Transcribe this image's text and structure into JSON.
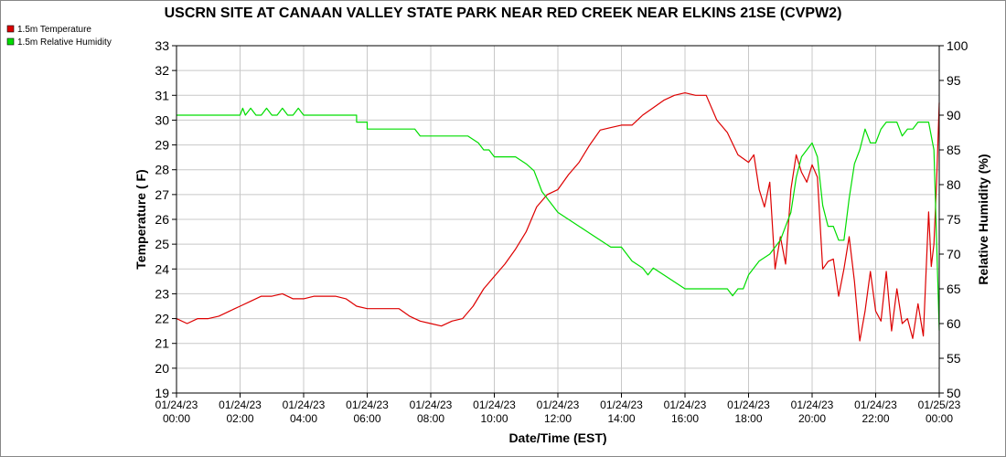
{
  "chart_data": {
    "type": "line",
    "title": "USCRN SITE AT CANAAN VALLEY STATE PARK NEAR RED CREEK NEAR ELKINS 21SE (CVPW2)",
    "xlabel": "Date/Time (EST)",
    "ylabel": "Temperature ( F)",
    "y2label": "Relative Humidity (%)",
    "ylim": [
      19,
      33
    ],
    "y2lim": [
      50,
      100
    ],
    "y_ticks": [
      "19",
      "20",
      "21",
      "22",
      "23",
      "24",
      "25",
      "26",
      "27",
      "28",
      "29",
      "30",
      "31",
      "32",
      "33"
    ],
    "y2_ticks": [
      "50",
      "55",
      "60",
      "65",
      "70",
      "75",
      "80",
      "85",
      "90",
      "95",
      "100"
    ],
    "x_ticks": [
      {
        "date": "01/24/23",
        "time": "00:00"
      },
      {
        "date": "01/24/23",
        "time": "02:00"
      },
      {
        "date": "01/24/23",
        "time": "04:00"
      },
      {
        "date": "01/24/23",
        "time": "06:00"
      },
      {
        "date": "01/24/23",
        "time": "08:00"
      },
      {
        "date": "01/24/23",
        "time": "10:00"
      },
      {
        "date": "01/24/23",
        "time": "12:00"
      },
      {
        "date": "01/24/23",
        "time": "14:00"
      },
      {
        "date": "01/24/23",
        "time": "16:00"
      },
      {
        "date": "01/24/23",
        "time": "18:00"
      },
      {
        "date": "01/24/23",
        "time": "20:00"
      },
      {
        "date": "01/24/23",
        "time": "22:00"
      },
      {
        "date": "01/25/23",
        "time": "00:00"
      }
    ],
    "grid": true,
    "legend_position": "top-left",
    "series": [
      {
        "name": "1.5m Temperature",
        "color": "#dd0000",
        "axis": "left",
        "points": [
          [
            "00:00",
            22.0
          ],
          [
            "00:20",
            21.8
          ],
          [
            "00:40",
            22.0
          ],
          [
            "01:00",
            22.0
          ],
          [
            "01:20",
            22.1
          ],
          [
            "01:40",
            22.3
          ],
          [
            "02:00",
            22.5
          ],
          [
            "02:20",
            22.7
          ],
          [
            "02:40",
            22.9
          ],
          [
            "03:00",
            22.9
          ],
          [
            "03:20",
            23.0
          ],
          [
            "03:40",
            22.8
          ],
          [
            "04:00",
            22.8
          ],
          [
            "04:20",
            22.9
          ],
          [
            "04:40",
            22.9
          ],
          [
            "05:00",
            22.9
          ],
          [
            "05:20",
            22.8
          ],
          [
            "05:40",
            22.5
          ],
          [
            "06:00",
            22.4
          ],
          [
            "06:20",
            22.4
          ],
          [
            "06:40",
            22.4
          ],
          [
            "07:00",
            22.4
          ],
          [
            "07:20",
            22.1
          ],
          [
            "07:40",
            21.9
          ],
          [
            "08:00",
            21.8
          ],
          [
            "08:20",
            21.7
          ],
          [
            "08:40",
            21.9
          ],
          [
            "09:00",
            22.0
          ],
          [
            "09:20",
            22.5
          ],
          [
            "09:40",
            23.2
          ],
          [
            "10:00",
            23.7
          ],
          [
            "10:20",
            24.2
          ],
          [
            "10:40",
            24.8
          ],
          [
            "11:00",
            25.5
          ],
          [
            "11:20",
            26.5
          ],
          [
            "11:40",
            27.0
          ],
          [
            "12:00",
            27.2
          ],
          [
            "12:20",
            27.8
          ],
          [
            "12:40",
            28.3
          ],
          [
            "13:00",
            29.0
          ],
          [
            "13:20",
            29.6
          ],
          [
            "13:40",
            29.7
          ],
          [
            "14:00",
            29.8
          ],
          [
            "14:20",
            29.8
          ],
          [
            "14:40",
            30.2
          ],
          [
            "15:00",
            30.5
          ],
          [
            "15:20",
            30.8
          ],
          [
            "15:40",
            31.0
          ],
          [
            "16:00",
            31.1
          ],
          [
            "16:20",
            31.0
          ],
          [
            "16:40",
            31.0
          ],
          [
            "17:00",
            30.0
          ],
          [
            "17:20",
            29.5
          ],
          [
            "17:40",
            28.6
          ],
          [
            "18:00",
            28.3
          ],
          [
            "18:10",
            28.6
          ],
          [
            "18:20",
            27.2
          ],
          [
            "18:30",
            26.5
          ],
          [
            "18:40",
            27.5
          ],
          [
            "18:50",
            24.0
          ],
          [
            "19:00",
            25.3
          ],
          [
            "19:10",
            24.2
          ],
          [
            "19:20",
            27.2
          ],
          [
            "19:30",
            28.6
          ],
          [
            "19:40",
            27.9
          ],
          [
            "19:50",
            27.5
          ],
          [
            "20:00",
            28.2
          ],
          [
            "20:10",
            27.7
          ],
          [
            "20:20",
            24.0
          ],
          [
            "20:30",
            24.3
          ],
          [
            "20:40",
            24.4
          ],
          [
            "20:50",
            22.9
          ],
          [
            "21:00",
            24.0
          ],
          [
            "21:10",
            25.3
          ],
          [
            "21:20",
            23.5
          ],
          [
            "21:30",
            21.1
          ],
          [
            "21:40",
            22.3
          ],
          [
            "21:50",
            23.9
          ],
          [
            "22:00",
            22.3
          ],
          [
            "22:10",
            21.9
          ],
          [
            "22:20",
            23.9
          ],
          [
            "22:30",
            21.5
          ],
          [
            "22:40",
            23.2
          ],
          [
            "22:50",
            21.8
          ],
          [
            "23:00",
            22.0
          ],
          [
            "23:10",
            21.2
          ],
          [
            "23:20",
            22.6
          ],
          [
            "23:30",
            21.3
          ],
          [
            "23:40",
            26.3
          ],
          [
            "23:45",
            24.1
          ],
          [
            "23:50",
            25.0
          ],
          [
            "23:55",
            27.5
          ],
          [
            "24:00",
            30.7
          ]
        ]
      },
      {
        "name": "1.5m Relative Humidity",
        "color": "#00dd00",
        "axis": "right",
        "points": [
          [
            "00:00",
            90
          ],
          [
            "02:00",
            90
          ],
          [
            "02:05",
            91
          ],
          [
            "02:10",
            90
          ],
          [
            "02:20",
            91
          ],
          [
            "02:30",
            90
          ],
          [
            "02:40",
            90
          ],
          [
            "02:50",
            91
          ],
          [
            "03:00",
            90
          ],
          [
            "03:10",
            90
          ],
          [
            "03:20",
            91
          ],
          [
            "03:30",
            90
          ],
          [
            "03:40",
            90
          ],
          [
            "03:50",
            91
          ],
          [
            "04:00",
            90
          ],
          [
            "05:40",
            90
          ],
          [
            "05:40",
            89
          ],
          [
            "06:00",
            89
          ],
          [
            "06:00",
            88
          ],
          [
            "07:30",
            88
          ],
          [
            "07:40",
            87
          ],
          [
            "09:10",
            87
          ],
          [
            "09:30",
            86
          ],
          [
            "09:40",
            85
          ],
          [
            "09:50",
            85
          ],
          [
            "10:00",
            84
          ],
          [
            "10:40",
            84
          ],
          [
            "11:00",
            83
          ],
          [
            "11:15",
            82
          ],
          [
            "11:20",
            81
          ],
          [
            "11:30",
            79
          ],
          [
            "11:40",
            78
          ],
          [
            "11:50",
            77
          ],
          [
            "12:00",
            76
          ],
          [
            "12:20",
            75
          ],
          [
            "12:40",
            74
          ],
          [
            "13:00",
            73
          ],
          [
            "13:20",
            72
          ],
          [
            "13:40",
            71
          ],
          [
            "14:00",
            71
          ],
          [
            "14:10",
            70
          ],
          [
            "14:20",
            69
          ],
          [
            "14:40",
            68
          ],
          [
            "14:50",
            67
          ],
          [
            "15:00",
            68
          ],
          [
            "15:20",
            67
          ],
          [
            "15:40",
            66
          ],
          [
            "16:00",
            65
          ],
          [
            "17:20",
            65
          ],
          [
            "17:30",
            64
          ],
          [
            "17:40",
            65
          ],
          [
            "17:50",
            65
          ],
          [
            "18:00",
            67
          ],
          [
            "18:20",
            69
          ],
          [
            "18:40",
            70
          ],
          [
            "19:00",
            72
          ],
          [
            "19:10",
            74
          ],
          [
            "19:20",
            76
          ],
          [
            "19:30",
            81
          ],
          [
            "19:40",
            84
          ],
          [
            "19:50",
            85
          ],
          [
            "20:00",
            86
          ],
          [
            "20:10",
            84
          ],
          [
            "20:20",
            77
          ],
          [
            "20:30",
            74
          ],
          [
            "20:40",
            74
          ],
          [
            "20:50",
            72
          ],
          [
            "21:00",
            72
          ],
          [
            "21:10",
            78
          ],
          [
            "21:20",
            83
          ],
          [
            "21:30",
            85
          ],
          [
            "21:40",
            88
          ],
          [
            "21:50",
            86
          ],
          [
            "22:00",
            86
          ],
          [
            "22:10",
            88
          ],
          [
            "22:20",
            89
          ],
          [
            "22:40",
            89
          ],
          [
            "22:50",
            87
          ],
          [
            "23:00",
            88
          ],
          [
            "23:10",
            88
          ],
          [
            "23:20",
            89
          ],
          [
            "23:40",
            89
          ],
          [
            "23:50",
            85
          ],
          [
            "24:00",
            59
          ]
        ]
      }
    ]
  }
}
